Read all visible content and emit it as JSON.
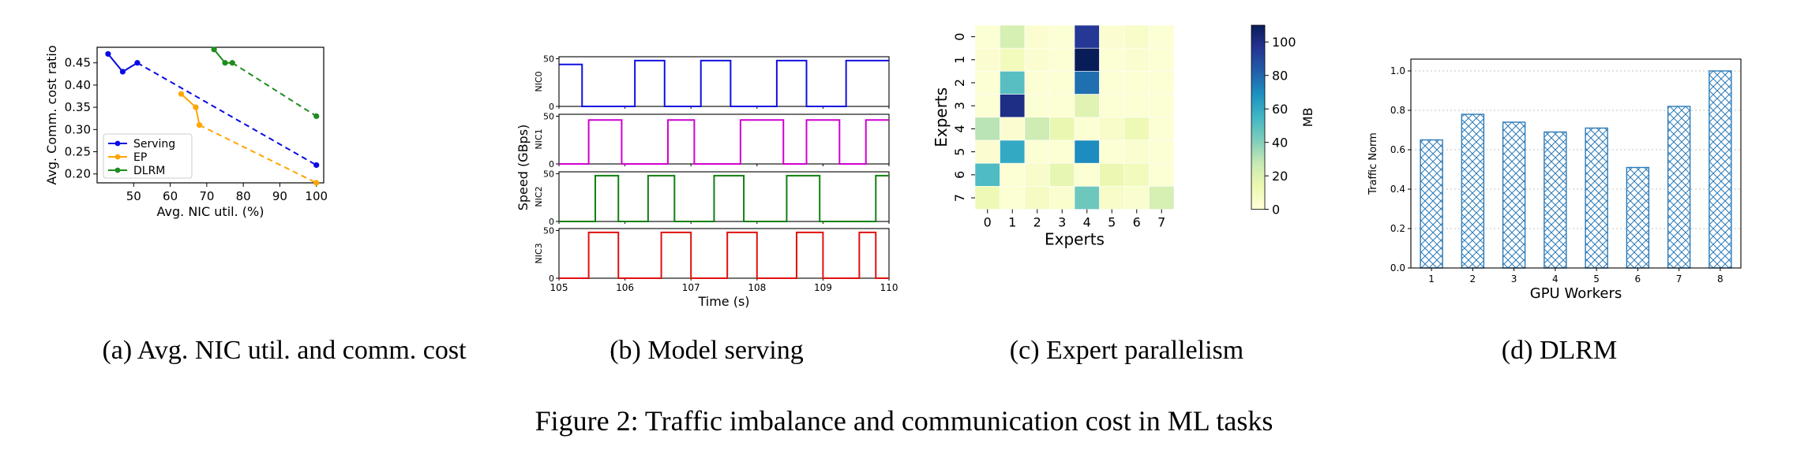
{
  "figure_caption": "Figure 2: Traffic imbalance and communication cost in ML tasks",
  "captions": {
    "a": "(a) Avg. NIC util. and comm. cost",
    "b": "(b) Model serving",
    "c": "(c) Expert parallelism",
    "d": "(d) DLRM"
  },
  "colors": {
    "serving": "#0a0ae6",
    "ep": "#ffa500",
    "dlrm": "#1e8c1e",
    "nic0": "#1010e0",
    "nic1": "#d000d0",
    "nic2": "#108010",
    "nic3": "#e01010",
    "bar": "#2a7ab8"
  },
  "chart_data": [
    {
      "id": "a",
      "type": "line",
      "xlabel": "Avg. NIC util. (%)",
      "ylabel": "Avg. Comm. cost ratio",
      "xlim": [
        40,
        102
      ],
      "ylim": [
        0.18,
        0.485
      ],
      "xticks": [
        50,
        60,
        70,
        80,
        90,
        100
      ],
      "yticks": [
        0.2,
        0.25,
        0.3,
        0.35,
        0.4,
        0.45
      ],
      "xtick_labels": [
        "50",
        "60",
        "70",
        "80",
        "90",
        "100"
      ],
      "ytick_labels": [
        "0.20",
        "0.25",
        "0.30",
        "0.35",
        "0.40",
        "0.45"
      ],
      "legend_position": "bottom-left",
      "series": [
        {
          "name": "Serving",
          "color_key": "serving",
          "solid": [
            [
              43,
              0.47
            ],
            [
              47,
              0.43
            ],
            [
              51,
              0.45
            ]
          ],
          "dashed_to": [
            100,
            0.22
          ]
        },
        {
          "name": "EP",
          "color_key": "ep",
          "solid": [
            [
              63,
              0.38
            ],
            [
              67,
              0.35
            ],
            [
              68,
              0.31
            ]
          ],
          "dashed_to": [
            100,
            0.18
          ]
        },
        {
          "name": "DLRM",
          "color_key": "dlrm",
          "solid": [
            [
              72,
              0.48
            ],
            [
              75,
              0.45
            ],
            [
              77,
              0.45
            ]
          ],
          "dashed_to": [
            100,
            0.33
          ]
        }
      ]
    },
    {
      "id": "b",
      "type": "line",
      "ylabel": "Speed (GBps)",
      "xlabel": "Time (s)",
      "xlim": [
        105,
        110
      ],
      "ylim": [
        0,
        52
      ],
      "xticks": [
        105,
        106,
        107,
        108,
        109,
        110
      ],
      "xtick_labels": [
        "105",
        "106",
        "107",
        "108",
        "109",
        "110"
      ],
      "yticks": [
        0,
        50
      ],
      "ytick_labels": [
        "0",
        "50"
      ],
      "subplots": [
        {
          "name": "NIC0",
          "color_key": "nic0",
          "base_value": 0,
          "high_value": 48,
          "initial_high": 44,
          "intervals": [
            [
              105,
              105.35
            ],
            [
              106.15,
              106.6
            ],
            [
              107.15,
              107.6
            ],
            [
              108.3,
              108.75
            ],
            [
              109.35,
              110
            ]
          ]
        },
        {
          "name": "NIC1",
          "color_key": "nic1",
          "base_value": 0,
          "high_value": 46,
          "initial_high": null,
          "intervals": [
            [
              105.45,
              105.95
            ],
            [
              106.65,
              107.05
            ],
            [
              107.75,
              108.4
            ],
            [
              108.75,
              109.25
            ],
            [
              109.65,
              110
            ]
          ]
        },
        {
          "name": "NIC2",
          "color_key": "nic2",
          "base_value": 0,
          "high_value": 48,
          "initial_high": null,
          "intervals": [
            [
              105.55,
              105.9
            ],
            [
              106.35,
              106.75
            ],
            [
              107.35,
              107.8
            ],
            [
              108.45,
              108.95
            ],
            [
              109.8,
              110
            ]
          ]
        },
        {
          "name": "NIC3",
          "color_key": "nic3",
          "base_value": 0,
          "high_value": 48,
          "initial_high": null,
          "intervals": [
            [
              105.45,
              105.9
            ],
            [
              106.55,
              107.0
            ],
            [
              107.55,
              108.0
            ],
            [
              108.6,
              109.0
            ],
            [
              109.55,
              109.8
            ]
          ]
        }
      ]
    },
    {
      "id": "c",
      "type": "heatmap",
      "xlabel": "Experts",
      "ylabel": "Experts",
      "colorbar_label": "MB",
      "vmin": 0,
      "vmax": 110,
      "colorbar_ticks": [
        0,
        20,
        40,
        60,
        80,
        100
      ],
      "colorbar_tick_labels": [
        "0",
        "20",
        "40",
        "60",
        "80",
        "100"
      ],
      "row_labels": [
        "0",
        "1",
        "2",
        "3",
        "4",
        "5",
        "6",
        "7"
      ],
      "col_labels": [
        "0",
        "1",
        "2",
        "3",
        "4",
        "5",
        "6",
        "7"
      ],
      "values": [
        [
          2,
          22,
          3,
          2,
          95,
          3,
          6,
          2
        ],
        [
          3,
          10,
          3,
          2,
          110,
          2,
          3,
          2
        ],
        [
          2,
          50,
          2,
          2,
          78,
          2,
          2,
          2
        ],
        [
          2,
          100,
          2,
          2,
          18,
          2,
          2,
          2
        ],
        [
          30,
          3,
          25,
          15,
          2,
          6,
          12,
          2
        ],
        [
          3,
          60,
          2,
          2,
          70,
          2,
          4,
          2
        ],
        [
          52,
          2,
          5,
          16,
          2,
          14,
          10,
          2
        ],
        [
          12,
          2,
          8,
          4,
          45,
          6,
          4,
          22
        ]
      ]
    },
    {
      "id": "d",
      "type": "bar",
      "xlabel": "GPU Workers",
      "ylabel": "Traffic Norm",
      "categories": [
        "1",
        "2",
        "3",
        "4",
        "5",
        "6",
        "7",
        "8"
      ],
      "values": [
        0.65,
        0.78,
        0.74,
        0.69,
        0.71,
        0.51,
        0.82,
        1.0
      ],
      "ylim": [
        0,
        1.06
      ],
      "yticks": [
        0.0,
        0.2,
        0.4,
        0.6,
        0.8,
        1.0
      ],
      "ytick_labels": [
        "0.0",
        "0.2",
        "0.4",
        "0.6",
        "0.8",
        "1.0"
      ],
      "grid": true,
      "hatch": "crosshatch"
    }
  ]
}
